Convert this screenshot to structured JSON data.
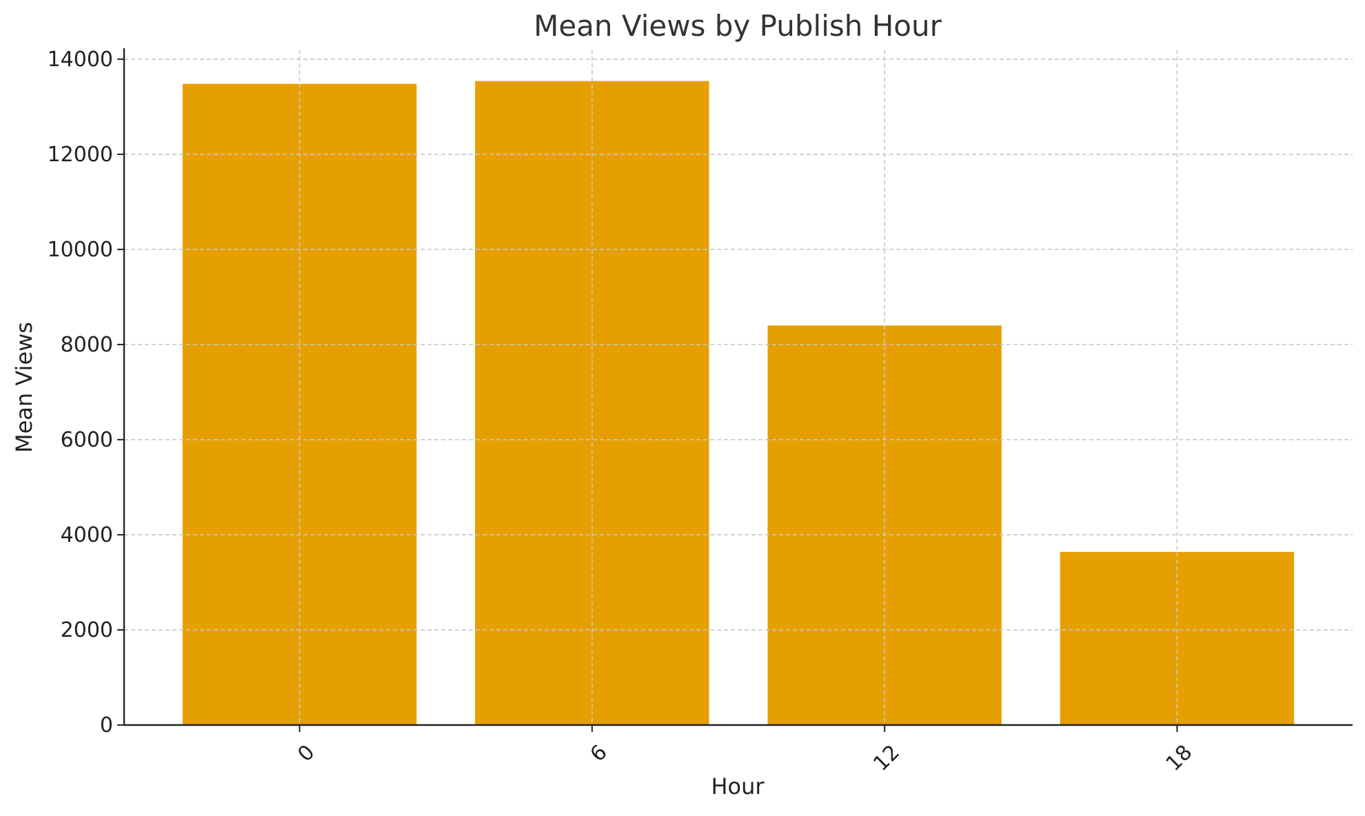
{
  "chart_data": {
    "type": "bar",
    "title": "Mean Views by Publish Hour",
    "xlabel": "Hour",
    "ylabel": "Mean Views",
    "categories": [
      "0",
      "6",
      "12",
      "18"
    ],
    "values": [
      13480,
      13540,
      8400,
      3640
    ],
    "ylim": [
      0,
      14200
    ],
    "yticks": [
      0,
      2000,
      4000,
      6000,
      8000,
      10000,
      12000,
      14000
    ],
    "grid": true,
    "bar_color": "#E69F00",
    "xtick_rotation": -45
  }
}
